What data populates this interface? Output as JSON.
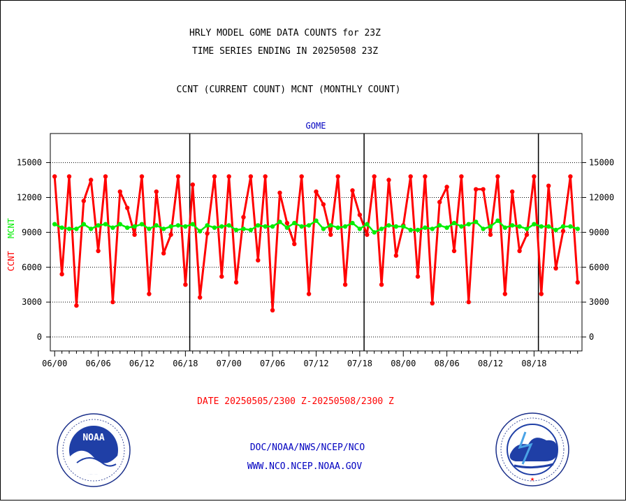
{
  "header": {
    "title_line1": "HRLY MODEL GOME DATA COUNTS for 23Z",
    "title_line2": "TIME SERIES ENDING IN 20250508 23Z",
    "subtitle": "CCNT (CURRENT COUNT) MCNT (MONTHLY COUNT)"
  },
  "footer": {
    "date_range": "DATE 20250505/2300 Z-20250508/2300 Z",
    "agency": "DOC/NOAA/NWS/NCEP/NCO",
    "url": "WWW.NCO.NCEP.NOAA.GOV"
  },
  "logos": {
    "noaa_text": "NOAA",
    "nws_ring_text": "NATIONAL WEATHER SERVICE"
  },
  "colors": {
    "ccnt": "#ff0000",
    "mcnt": "#00ee00",
    "panel_label": "#0000c0",
    "footer_text": "#0000c0",
    "date_text": "#ff0000"
  },
  "chart_data": {
    "type": "line",
    "panel_label": "GOME",
    "ylabel_ccnt": "CCNT",
    "ylabel_mcnt": "MCNT",
    "ylim": [
      -1200,
      17500
    ],
    "yticks": [
      0,
      3000,
      6000,
      9000,
      12000,
      15000
    ],
    "ytick_labels": [
      "0",
      "3000",
      "6000",
      "9000",
      "12000",
      "15000"
    ],
    "xticks": [
      0,
      6,
      12,
      18,
      24,
      30,
      36,
      42,
      48,
      54,
      60,
      66
    ],
    "xtick_labels": [
      "06/00",
      "06/06",
      "06/12",
      "06/18",
      "07/00",
      "07/06",
      "07/12",
      "07/18",
      "08/00",
      "08/06",
      "08/12",
      "08/18"
    ],
    "xlim": [
      -0.6,
      72.6
    ],
    "day_separators": [
      18.6,
      42.6,
      66.6
    ],
    "grid": true,
    "series": [
      {
        "name": "CCNT",
        "color": "#ff0000",
        "values": [
          13800,
          5400,
          13800,
          2700,
          11700,
          13500,
          7400,
          13800,
          3000,
          12500,
          11100,
          8800,
          13800,
          3700,
          12500,
          7200,
          8800,
          13800,
          4500,
          13100,
          3400,
          8900,
          13800,
          5200,
          13800,
          4700,
          10300,
          13800,
          6600,
          13800,
          2300,
          12400,
          9800,
          8000,
          13800,
          3700,
          12500,
          11400,
          8800,
          13800,
          4500,
          12600,
          10500,
          8800,
          13800,
          4500,
          13500,
          7000,
          9600,
          13800,
          5200,
          13800,
          2900,
          11600,
          12900,
          7400,
          13800,
          3000,
          12700,
          12700,
          8800,
          13800,
          3700,
          12500,
          7400,
          8800,
          13800,
          3700,
          13000,
          5900,
          9100,
          13800,
          4700
        ]
      },
      {
        "name": "MCNT",
        "color": "#00ee00",
        "values": [
          9700,
          9400,
          9300,
          9300,
          9700,
          9300,
          9600,
          9700,
          9400,
          9700,
          9400,
          9500,
          9700,
          9300,
          9600,
          9300,
          9500,
          9600,
          9500,
          9700,
          9100,
          9600,
          9400,
          9500,
          9600,
          9200,
          9300,
          9200,
          9600,
          9500,
          9500,
          9900,
          9400,
          9800,
          9500,
          9600,
          10000,
          9300,
          9600,
          9400,
          9500,
          9800,
          9300,
          9700,
          9000,
          9300,
          9600,
          9500,
          9500,
          9200,
          9200,
          9400,
          9300,
          9600,
          9400,
          9800,
          9500,
          9700,
          9900,
          9300,
          9500,
          10000,
          9400,
          9600,
          9500,
          9300,
          9700,
          9500,
          9500,
          9200,
          9500,
          9500,
          9300
        ]
      }
    ]
  }
}
